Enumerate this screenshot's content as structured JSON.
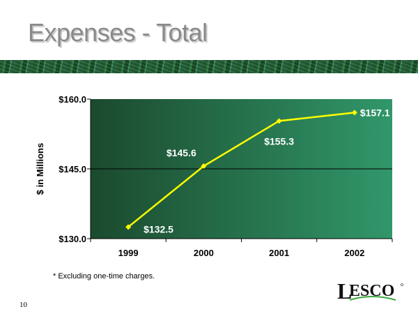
{
  "slide": {
    "title": "Expenses - Total",
    "footnote": "* Excluding one-time charges.",
    "page_number": "10",
    "logo_text": "LESCO"
  },
  "colors": {
    "line": "#ffff00",
    "plot_bg_left": "#1b4a2e",
    "plot_bg_right": "#31976a"
  },
  "chart_data": {
    "type": "line",
    "title": "",
    "xlabel": "",
    "ylabel": "$ in Millions",
    "categories": [
      "1999",
      "2000",
      "2001",
      "2002"
    ],
    "values": [
      132.5,
      145.6,
      155.3,
      157.1
    ],
    "data_labels": [
      "$132.5",
      "$145.6",
      "$155.3",
      "$157.1"
    ],
    "ylim": [
      130,
      160
    ],
    "yticks": [
      130,
      145,
      160
    ],
    "ytick_labels": [
      "$130.0",
      "$145.0",
      "$160.0"
    ],
    "grid": true
  }
}
